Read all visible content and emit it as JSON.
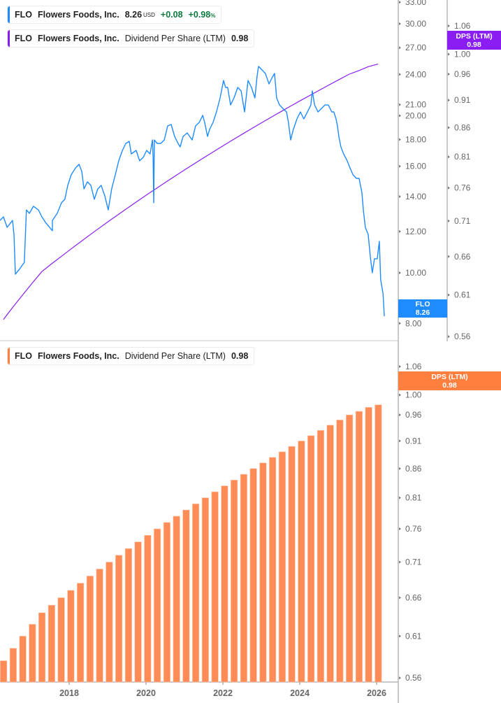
{
  "legends": {
    "price": {
      "ticker": "FLO",
      "name": "Flowers Foods, Inc.",
      "price": "8.26",
      "currency": "USD",
      "change": "+0.08",
      "change_pct": "+0.98",
      "pct_sign": "%",
      "color": "#1e8bff"
    },
    "dps_top": {
      "ticker": "FLO",
      "name": "Flowers Foods, Inc.",
      "metric": "Dividend Per Share (LTM)",
      "value": "0.98",
      "color": "#8a1df2"
    },
    "dps_bottom": {
      "ticker": "FLO",
      "name": "Flowers Foods, Inc.",
      "metric": "Dividend Per Share (LTM)",
      "value": "0.98",
      "color": "#ff7f3f"
    }
  },
  "tags": {
    "price": {
      "label": "FLO",
      "value": "8.26",
      "color": "#1e8bff"
    },
    "dps_top": {
      "label": "DPS (LTM)",
      "value": "0.98",
      "color": "#8a1df2"
    },
    "dps_bottom": {
      "label": "DPS (LTM)",
      "value": "0.98",
      "color": "#ff7f3f"
    }
  },
  "chart_data": [
    {
      "type": "line",
      "title": "",
      "y_scale": "log",
      "price_axis_ticks": [
        "33.00",
        "30.00",
        "27.00",
        "24.00",
        "21.00",
        "20.00",
        "18.00",
        "16.00",
        "14.00",
        "12.00",
        "10.00",
        "8.00"
      ],
      "dps_axis_ticks": [
        "1.06",
        "1.00",
        "0.96",
        "0.91",
        "0.86",
        "0.81",
        "0.76",
        "0.71",
        "0.66",
        "0.61",
        "0.56"
      ],
      "grid": false,
      "series": [
        {
          "name": "FLO",
          "axis": "price",
          "color": "#1e8bff",
          "points": [
            [
              "2016-03-13",
              12.6
            ],
            [
              "2016-04-15",
              12.8
            ],
            [
              "2016-05-20",
              12.22
            ],
            [
              "2016-07-10",
              12.6
            ],
            [
              "2016-07-24",
              11.85
            ],
            [
              "2016-08-07",
              9.94
            ],
            [
              "2016-09-15",
              10.16
            ],
            [
              "2016-11-01",
              10.47
            ],
            [
              "2016-11-21",
              13.2
            ],
            [
              "2016-12-18",
              13.0
            ],
            [
              "2017-01-27",
              13.41
            ],
            [
              "2017-03-13",
              13.2
            ],
            [
              "2017-04-15",
              12.8
            ],
            [
              "2017-05-20",
              12.49
            ],
            [
              "2017-07-24",
              12.04
            ],
            [
              "2017-07-24",
              12.6
            ],
            [
              "2017-09-09",
              13.0
            ],
            [
              "2017-10-19",
              13.62
            ],
            [
              "2017-11-21",
              13.83
            ],
            [
              "2017-12-18",
              14.71
            ],
            [
              "2018-01-20",
              15.41
            ],
            [
              "2018-03-01",
              15.89
            ],
            [
              "2018-04-03",
              16.14
            ],
            [
              "2018-04-29",
              15.65
            ],
            [
              "2018-05-20",
              14.48
            ],
            [
              "2018-06-22",
              14.94
            ],
            [
              "2018-07-24",
              14.71
            ],
            [
              "2018-08-27",
              13.83
            ],
            [
              "2018-09-29",
              14.48
            ],
            [
              "2018-11-01",
              14.71
            ],
            [
              "2018-12-05",
              14.04
            ],
            [
              "2019-01-07",
              13.2
            ],
            [
              "2019-02-09",
              14.48
            ],
            [
              "2019-03-13",
              15.41
            ],
            [
              "2019-04-15",
              16.39
            ],
            [
              "2019-05-20",
              17.16
            ],
            [
              "2019-06-22",
              17.7
            ],
            [
              "2019-07-24",
              17.86
            ],
            [
              "2019-08-13",
              16.9
            ],
            [
              "2019-09-29",
              17.16
            ],
            [
              "2019-11-01",
              16.39
            ],
            [
              "2019-12-05",
              16.64
            ],
            [
              "2020-01-07",
              17.16
            ],
            [
              "2020-02-09",
              16.9
            ],
            [
              "2020-03-01",
              17.97
            ],
            [
              "2020-03-07",
              16.64
            ],
            [
              "2020-03-13",
              13.62
            ],
            [
              "2020-03-19",
              17.97
            ],
            [
              "2020-04-15",
              17.7
            ],
            [
              "2020-05-20",
              17.7
            ],
            [
              "2020-06-22",
              17.97
            ],
            [
              "2020-07-24",
              19.12
            ],
            [
              "2020-08-27",
              19.24
            ],
            [
              "2020-09-29",
              18.25
            ],
            [
              "2020-11-01",
              17.7
            ],
            [
              "2020-11-21",
              17.43
            ],
            [
              "2020-12-18",
              18.25
            ],
            [
              "2021-01-27",
              18.54
            ],
            [
              "2021-03-13",
              17.97
            ],
            [
              "2021-04-15",
              19.12
            ],
            [
              "2021-05-20",
              19.42
            ],
            [
              "2021-06-22",
              20.03
            ],
            [
              "2021-07-10",
              19.42
            ],
            [
              "2021-08-07",
              18.25
            ],
            [
              "2021-08-27",
              18.83
            ],
            [
              "2021-09-29",
              19.42
            ],
            [
              "2021-11-01",
              20.34
            ],
            [
              "2021-12-05",
              21.63
            ],
            [
              "2022-01-07",
              23.37
            ],
            [
              "2022-01-27",
              22.66
            ],
            [
              "2022-02-16",
              22.66
            ],
            [
              "2022-03-13",
              20.97
            ],
            [
              "2022-04-15",
              21.63
            ],
            [
              "2022-05-20",
              22.66
            ],
            [
              "2022-06-22",
              22.31
            ],
            [
              "2022-07-24",
              20.34
            ],
            [
              "2022-08-27",
              23.37
            ],
            [
              "2022-09-29",
              22.66
            ],
            [
              "2022-11-01",
              21.63
            ],
            [
              "2022-11-21",
              23.73
            ],
            [
              "2022-12-05",
              24.86
            ],
            [
              "2023-01-07",
              24.48
            ],
            [
              "2023-02-09",
              24.1
            ],
            [
              "2023-03-13",
              23.01
            ],
            [
              "2023-04-15",
              23.73
            ],
            [
              "2023-05-05",
              24.1
            ],
            [
              "2023-05-25",
              21.63
            ],
            [
              "2023-06-22",
              20.97
            ],
            [
              "2023-07-24",
              20.65
            ],
            [
              "2023-08-27",
              20.34
            ],
            [
              "2023-09-15",
              19.42
            ],
            [
              "2023-10-06",
              17.97
            ],
            [
              "2023-11-01",
              18.83
            ],
            [
              "2023-12-05",
              19.72
            ],
            [
              "2024-01-07",
              20.34
            ],
            [
              "2024-02-09",
              19.72
            ],
            [
              "2024-03-13",
              20.34
            ],
            [
              "2024-04-15",
              20.97
            ],
            [
              "2024-04-29",
              22.31
            ],
            [
              "2024-05-20",
              20.97
            ],
            [
              "2024-06-22",
              20.34
            ],
            [
              "2024-07-24",
              20.65
            ],
            [
              "2024-08-27",
              20.97
            ],
            [
              "2024-09-29",
              20.97
            ],
            [
              "2024-11-01",
              20.34
            ],
            [
              "2024-11-21",
              20.34
            ],
            [
              "2024-12-11",
              19.72
            ],
            [
              "2024-12-25",
              19.12
            ],
            [
              "2025-01-07",
              18.25
            ],
            [
              "2025-01-27",
              17.43
            ],
            [
              "2025-02-22",
              16.9
            ],
            [
              "2025-03-26",
              16.39
            ],
            [
              "2025-04-22",
              15.89
            ],
            [
              "2025-05-20",
              15.41
            ],
            [
              "2025-06-22",
              15.17
            ],
            [
              "2025-07-17",
              15.17
            ],
            [
              "2025-08-13",
              14.26
            ],
            [
              "2025-08-27",
              13.2
            ],
            [
              "2025-09-15",
              12.22
            ],
            [
              "2025-10-12",
              11.85
            ],
            [
              "2025-11-01",
              10.8
            ],
            [
              "2025-11-21",
              10.0
            ],
            [
              "2025-12-11",
              10.64
            ],
            [
              "2026-01-07",
              10.64
            ],
            [
              "2026-01-27",
              11.49
            ],
            [
              "2026-02-09",
              9.7
            ],
            [
              "2026-03-01",
              9.12
            ],
            [
              "2026-03-13",
              8.26
            ]
          ]
        },
        {
          "name": "Dividend Per Share (LTM)",
          "axis": "dps",
          "color": "#8a1df2",
          "style": "line",
          "source": "dps"
        }
      ]
    },
    {
      "type": "bar",
      "title": "",
      "y_scale": "log",
      "dps_axis_ticks": [
        "1.06",
        "1.00",
        "0.96",
        "0.91",
        "0.86",
        "0.81",
        "0.76",
        "0.71",
        "0.66",
        "0.61",
        "0.56"
      ],
      "x_tick_labels": [
        "2018",
        "2020",
        "2022",
        "2024",
        "2026"
      ],
      "grid": false,
      "series": [
        {
          "name": "Dividend Per Share (LTM)",
          "color": "#ff8c57",
          "dates": [
            "2016-04",
            "2016-07",
            "2016-10",
            "2017-01",
            "2017-04",
            "2017-07",
            "2017-10",
            "2018-01",
            "2018-04",
            "2018-07",
            "2018-10",
            "2019-01",
            "2019-04",
            "2019-07",
            "2019-10",
            "2020-01",
            "2020-04",
            "2020-07",
            "2020-10",
            "2021-01",
            "2021-04",
            "2021-07",
            "2021-10",
            "2022-01",
            "2022-04",
            "2022-07",
            "2022-10",
            "2023-01",
            "2023-04",
            "2023-07",
            "2023-10",
            "2024-01",
            "2024-04",
            "2024-07",
            "2024-10",
            "2025-01",
            "2025-04",
            "2025-07",
            "2025-10",
            "2026-01"
          ],
          "values": [
            0.58,
            0.595,
            0.61,
            0.625,
            0.64,
            0.65,
            0.66,
            0.67,
            0.68,
            0.69,
            0.7,
            0.71,
            0.72,
            0.73,
            0.74,
            0.75,
            0.76,
            0.77,
            0.78,
            0.79,
            0.8,
            0.81,
            0.82,
            0.83,
            0.84,
            0.85,
            0.86,
            0.87,
            0.88,
            0.89,
            0.9,
            0.91,
            0.92,
            0.93,
            0.94,
            0.95,
            0.96,
            0.967,
            0.975,
            0.98
          ]
        }
      ]
    }
  ]
}
